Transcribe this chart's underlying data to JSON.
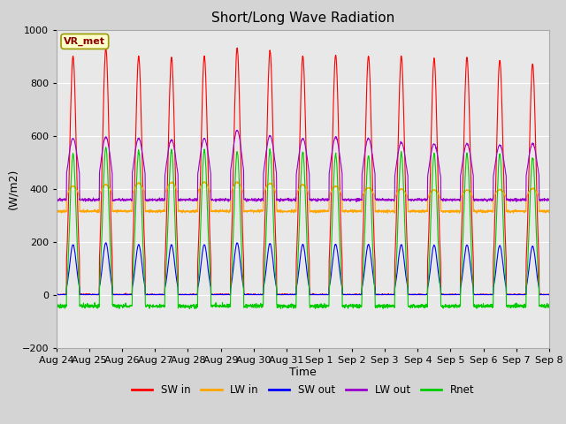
{
  "title": "Short/Long Wave Radiation",
  "xlabel": "Time",
  "ylabel": "(W/m2)",
  "ylim": [
    -200,
    1000
  ],
  "annotation": "VR_met",
  "x_tick_labels": [
    "Aug 24",
    "Aug 25",
    "Aug 26",
    "Aug 27",
    "Aug 28",
    "Aug 29",
    "Aug 30",
    "Aug 31",
    "Sep 1",
    "Sep 2",
    "Sep 3",
    "Sep 4",
    "Sep 5",
    "Sep 6",
    "Sep 7",
    "Sep 8"
  ],
  "series": {
    "SW_in": {
      "color": "#ff0000",
      "label": "SW in"
    },
    "LW_in": {
      "color": "#ffa500",
      "label": "LW in"
    },
    "SW_out": {
      "color": "#0000ff",
      "label": "SW out"
    },
    "LW_out": {
      "color": "#9900cc",
      "label": "LW out"
    },
    "Rnet": {
      "color": "#00cc00",
      "label": "Rnet"
    }
  },
  "num_days": 15,
  "pts_per_day": 144,
  "background_color": "#d4d4d4",
  "plot_bg_color": "#e8e8e8",
  "grid_color": "#ffffff",
  "title_fontsize": 11,
  "label_fontsize": 9,
  "tick_fontsize": 8,
  "sw_in_peaks": [
    900,
    930,
    900,
    895,
    900,
    930,
    920,
    900,
    905,
    900,
    900,
    890,
    895,
    885,
    870
  ],
  "lw_out_peaks": [
    590,
    595,
    590,
    585,
    590,
    620,
    600,
    590,
    595,
    590,
    575,
    570,
    570,
    565,
    570
  ],
  "night_lw_in": 315,
  "night_lw_out": 358,
  "night_rnet": -65
}
